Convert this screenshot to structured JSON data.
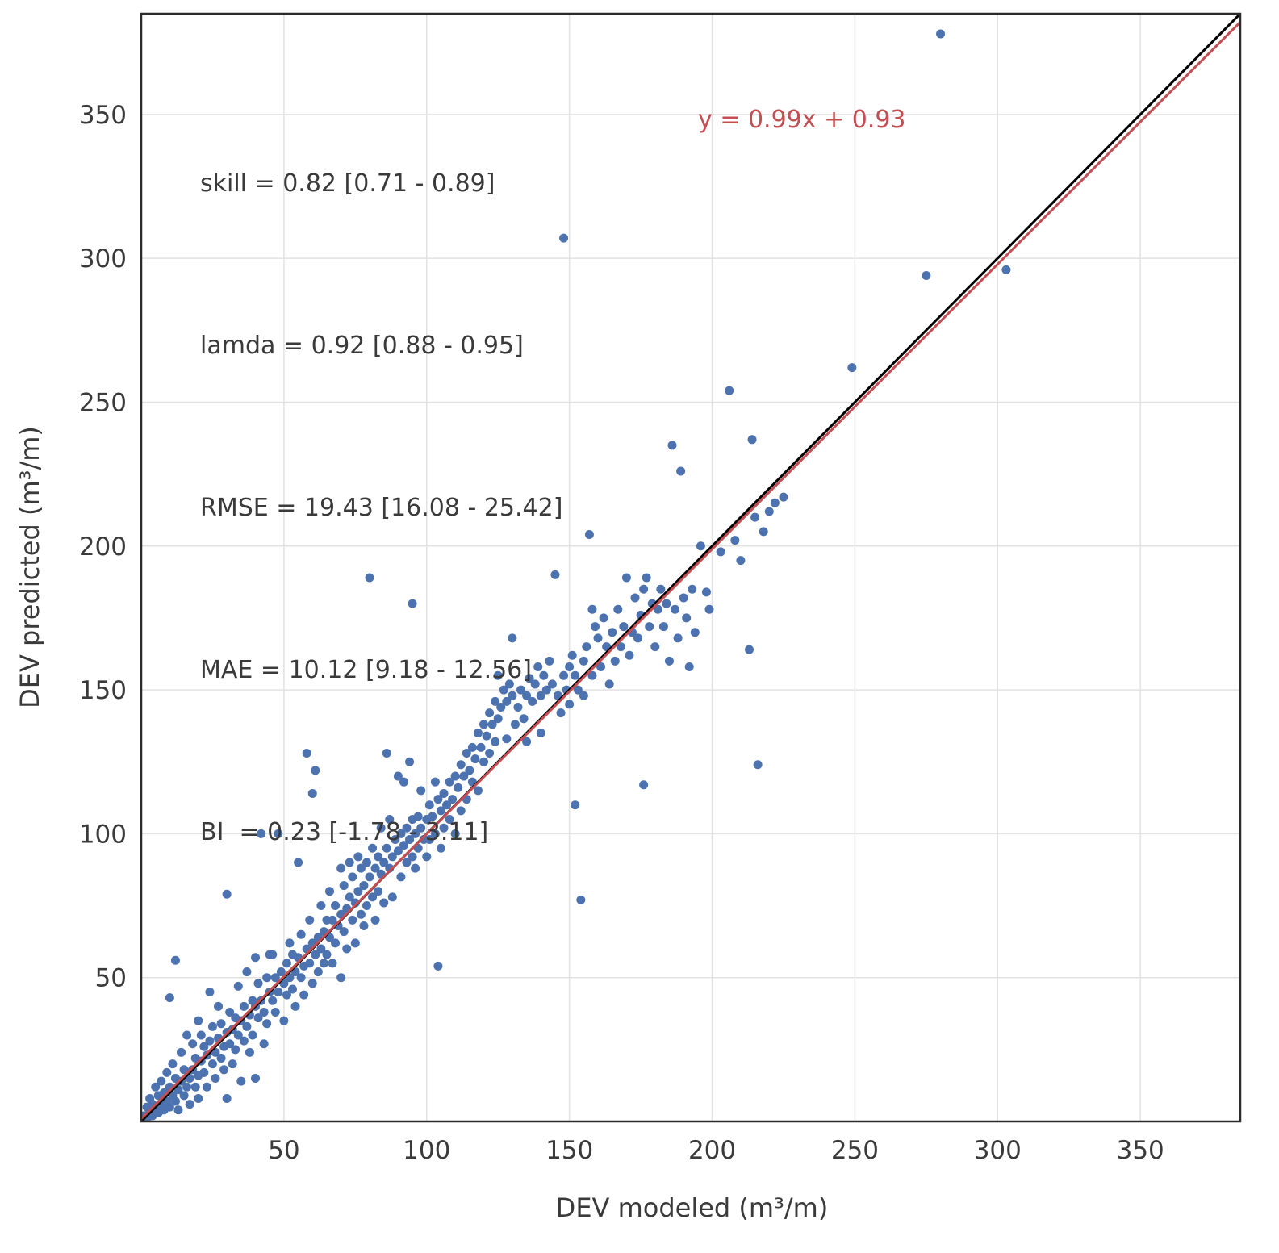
{
  "chart_data": {
    "type": "scatter",
    "title": "",
    "xlabel": "DEV modeled (m³/m)",
    "ylabel": "DEV predicted (m³/m)",
    "xlim": [
      0,
      385
    ],
    "ylim": [
      0,
      385
    ],
    "xticks": [
      50,
      100,
      150,
      200,
      250,
      300,
      350
    ],
    "yticks": [
      50,
      100,
      150,
      200,
      250,
      300,
      350
    ],
    "grid": true,
    "grid_color": "#e2e2e2",
    "border_color": "#2b2b2b",
    "point_color": "#4c72b0",
    "point_radius": 5.5,
    "identity_line": {
      "color": "#000000",
      "width": 3
    },
    "regression_line": {
      "slope": 0.99,
      "intercept": 0.93,
      "color": "#c44e52",
      "width": 3
    },
    "annotations": {
      "stats_lines": [
        "skill = 0.82 [0.71 - 0.89]",
        "lamda = 0.92 [0.88 - 0.95]",
        "RMSE = 19.43 [16.08 - 25.42]",
        "MAE = 10.12 [9.18 - 12.56]",
        "BI  = 0.23 [-1.78 - 3.11]"
      ],
      "regression_label": "y = 0.99x + 0.93",
      "regression_label_color": "#c44e52"
    },
    "points": [
      [
        1,
        2
      ],
      [
        2,
        5
      ],
      [
        2,
        1
      ],
      [
        3,
        3
      ],
      [
        3,
        8
      ],
      [
        4,
        2
      ],
      [
        4,
        6
      ],
      [
        5,
        5
      ],
      [
        5,
        12
      ],
      [
        6,
        3
      ],
      [
        6,
        9
      ],
      [
        7,
        6
      ],
      [
        7,
        14
      ],
      [
        8,
        4
      ],
      [
        8,
        10
      ],
      [
        9,
        7
      ],
      [
        9,
        17
      ],
      [
        10,
        5
      ],
      [
        10,
        12
      ],
      [
        10,
        43
      ],
      [
        11,
        9
      ],
      [
        11,
        20
      ],
      [
        12,
        7
      ],
      [
        12,
        15
      ],
      [
        12,
        56
      ],
      [
        13,
        11
      ],
      [
        13,
        4
      ],
      [
        14,
        14
      ],
      [
        14,
        24
      ],
      [
        15,
        9
      ],
      [
        15,
        18
      ],
      [
        16,
        12
      ],
      [
        16,
        30
      ],
      [
        17,
        15
      ],
      [
        17,
        6
      ],
      [
        18,
        18
      ],
      [
        18,
        27
      ],
      [
        19,
        12
      ],
      [
        19,
        22
      ],
      [
        20,
        16
      ],
      [
        20,
        35
      ],
      [
        20,
        8
      ],
      [
        21,
        21
      ],
      [
        21,
        30
      ],
      [
        22,
        17
      ],
      [
        22,
        26
      ],
      [
        23,
        23
      ],
      [
        23,
        12
      ],
      [
        24,
        28
      ],
      [
        24,
        45
      ],
      [
        25,
        20
      ],
      [
        25,
        33
      ],
      [
        26,
        24
      ],
      [
        26,
        15
      ],
      [
        27,
        29
      ],
      [
        27,
        40
      ],
      [
        28,
        22
      ],
      [
        28,
        34
      ],
      [
        29,
        26
      ],
      [
        29,
        18
      ],
      [
        30,
        31
      ],
      [
        30,
        8
      ],
      [
        30,
        79
      ],
      [
        31,
        27
      ],
      [
        31,
        38
      ],
      [
        32,
        32
      ],
      [
        32,
        20
      ],
      [
        33,
        36
      ],
      [
        33,
        25
      ],
      [
        34,
        30
      ],
      [
        34,
        47
      ],
      [
        35,
        35
      ],
      [
        35,
        14
      ],
      [
        36,
        40
      ],
      [
        36,
        28
      ],
      [
        37,
        33
      ],
      [
        37,
        52
      ],
      [
        38,
        37
      ],
      [
        38,
        24
      ],
      [
        39,
        42
      ],
      [
        39,
        30
      ],
      [
        40,
        40
      ],
      [
        40,
        15
      ],
      [
        40,
        57
      ],
      [
        41,
        36
      ],
      [
        41,
        48
      ],
      [
        42,
        42
      ],
      [
        42,
        100
      ],
      [
        43,
        38
      ],
      [
        43,
        27
      ],
      [
        44,
        50
      ],
      [
        44,
        34
      ],
      [
        45,
        45
      ],
      [
        45,
        58
      ],
      [
        46,
        42
      ],
      [
        46,
        58
      ],
      [
        47,
        38
      ],
      [
        47,
        50
      ],
      [
        48,
        45
      ],
      [
        48,
        100
      ],
      [
        49,
        52
      ],
      [
        50,
        48
      ],
      [
        50,
        35
      ],
      [
        51,
        55
      ],
      [
        51,
        44
      ],
      [
        52,
        50
      ],
      [
        52,
        62
      ],
      [
        53,
        46
      ],
      [
        53,
        58
      ],
      [
        54,
        52
      ],
      [
        54,
        40
      ],
      [
        55,
        57
      ],
      [
        55,
        90
      ],
      [
        56,
        50
      ],
      [
        56,
        65
      ],
      [
        57,
        54
      ],
      [
        57,
        44
      ],
      [
        58,
        60
      ],
      [
        58,
        128
      ],
      [
        59,
        55
      ],
      [
        59,
        70
      ],
      [
        60,
        62
      ],
      [
        60,
        48
      ],
      [
        60,
        114
      ],
      [
        61,
        58
      ],
      [
        61,
        122
      ],
      [
        62,
        64
      ],
      [
        62,
        52
      ],
      [
        63,
        60
      ],
      [
        63,
        75
      ],
      [
        64,
        66
      ],
      [
        64,
        55
      ],
      [
        65,
        70
      ],
      [
        65,
        58
      ],
      [
        66,
        64
      ],
      [
        66,
        80
      ],
      [
        67,
        70
      ],
      [
        67,
        55
      ],
      [
        68,
        75
      ],
      [
        68,
        62
      ],
      [
        69,
        68
      ],
      [
        70,
        72
      ],
      [
        70,
        50
      ],
      [
        70,
        88
      ],
      [
        71,
        66
      ],
      [
        71,
        82
      ],
      [
        72,
        74
      ],
      [
        72,
        60
      ],
      [
        73,
        78
      ],
      [
        73,
        90
      ],
      [
        74,
        70
      ],
      [
        74,
        85
      ],
      [
        75,
        76
      ],
      [
        75,
        62
      ],
      [
        76,
        80
      ],
      [
        76,
        92
      ],
      [
        77,
        72
      ],
      [
        77,
        88
      ],
      [
        78,
        82
      ],
      [
        78,
        68
      ],
      [
        79,
        90
      ],
      [
        79,
        75
      ],
      [
        80,
        85
      ],
      [
        80,
        189
      ],
      [
        81,
        78
      ],
      [
        81,
        95
      ],
      [
        82,
        88
      ],
      [
        82,
        70
      ],
      [
        83,
        92
      ],
      [
        83,
        80
      ],
      [
        84,
        86
      ],
      [
        84,
        102
      ],
      [
        85,
        90
      ],
      [
        85,
        76
      ],
      [
        86,
        95
      ],
      [
        86,
        128
      ],
      [
        87,
        88
      ],
      [
        87,
        105
      ],
      [
        88,
        92
      ],
      [
        88,
        78
      ],
      [
        89,
        98
      ],
      [
        90,
        94
      ],
      [
        90,
        120
      ],
      [
        91,
        100
      ],
      [
        91,
        85
      ],
      [
        92,
        96
      ],
      [
        92,
        118
      ],
      [
        93,
        102
      ],
      [
        93,
        90
      ],
      [
        94,
        98
      ],
      [
        94,
        125
      ],
      [
        95,
        105
      ],
      [
        95,
        180
      ],
      [
        95,
        92
      ],
      [
        96,
        100
      ],
      [
        96,
        88
      ],
      [
        97,
        106
      ],
      [
        97,
        95
      ],
      [
        98,
        102
      ],
      [
        98,
        115
      ],
      [
        99,
        98
      ],
      [
        100,
        105
      ],
      [
        100,
        92
      ],
      [
        101,
        110
      ],
      [
        101,
        98
      ],
      [
        102,
        106
      ],
      [
        103,
        100
      ],
      [
        103,
        118
      ],
      [
        104,
        54
      ],
      [
        104,
        112
      ],
      [
        105,
        108
      ],
      [
        105,
        95
      ],
      [
        106,
        114
      ],
      [
        106,
        102
      ],
      [
        107,
        110
      ],
      [
        108,
        118
      ],
      [
        108,
        105
      ],
      [
        109,
        112
      ],
      [
        110,
        120
      ],
      [
        110,
        100
      ],
      [
        111,
        116
      ],
      [
        112,
        124
      ],
      [
        112,
        108
      ],
      [
        113,
        120
      ],
      [
        114,
        128
      ],
      [
        114,
        112
      ],
      [
        115,
        122
      ],
      [
        116,
        130
      ],
      [
        116,
        118
      ],
      [
        117,
        126
      ],
      [
        118,
        135
      ],
      [
        118,
        115
      ],
      [
        119,
        130
      ],
      [
        120,
        138
      ],
      [
        120,
        125
      ],
      [
        121,
        134
      ],
      [
        122,
        142
      ],
      [
        122,
        128
      ],
      [
        123,
        138
      ],
      [
        124,
        146
      ],
      [
        124,
        132
      ],
      [
        125,
        140
      ],
      [
        125,
        155
      ],
      [
        126,
        144
      ],
      [
        127,
        150
      ],
      [
        128,
        146
      ],
      [
        128,
        133
      ],
      [
        129,
        152
      ],
      [
        130,
        148
      ],
      [
        130,
        168
      ],
      [
        131,
        138
      ],
      [
        132,
        144
      ],
      [
        133,
        150
      ],
      [
        134,
        140
      ],
      [
        135,
        148
      ],
      [
        135,
        132
      ],
      [
        136,
        154
      ],
      [
        137,
        146
      ],
      [
        138,
        152
      ],
      [
        139,
        158
      ],
      [
        140,
        148
      ],
      [
        140,
        135
      ],
      [
        141,
        155
      ],
      [
        142,
        150
      ],
      [
        143,
        160
      ],
      [
        144,
        152
      ],
      [
        145,
        190
      ],
      [
        146,
        148
      ],
      [
        147,
        142
      ],
      [
        148,
        307
      ],
      [
        148,
        155
      ],
      [
        149,
        150
      ],
      [
        150,
        158
      ],
      [
        150,
        145
      ],
      [
        151,
        162
      ],
      [
        152,
        110
      ],
      [
        152,
        155
      ],
      [
        153,
        150
      ],
      [
        154,
        77
      ],
      [
        155,
        160
      ],
      [
        155,
        148
      ],
      [
        156,
        165
      ],
      [
        157,
        204
      ],
      [
        158,
        178
      ],
      [
        158,
        155
      ],
      [
        159,
        172
      ],
      [
        160,
        168
      ],
      [
        161,
        158
      ],
      [
        162,
        175
      ],
      [
        163,
        165
      ],
      [
        164,
        152
      ],
      [
        165,
        170
      ],
      [
        166,
        160
      ],
      [
        167,
        178
      ],
      [
        168,
        165
      ],
      [
        169,
        172
      ],
      [
        170,
        189
      ],
      [
        171,
        162
      ],
      [
        172,
        170
      ],
      [
        173,
        182
      ],
      [
        174,
        168
      ],
      [
        175,
        176
      ],
      [
        176,
        185
      ],
      [
        176,
        117
      ],
      [
        177,
        189
      ],
      [
        178,
        172
      ],
      [
        179,
        180
      ],
      [
        180,
        165
      ],
      [
        181,
        178
      ],
      [
        182,
        185
      ],
      [
        183,
        172
      ],
      [
        184,
        180
      ],
      [
        185,
        160
      ],
      [
        186,
        235
      ],
      [
        187,
        178
      ],
      [
        188,
        168
      ],
      [
        189,
        226
      ],
      [
        190,
        182
      ],
      [
        191,
        175
      ],
      [
        192,
        158
      ],
      [
        193,
        185
      ],
      [
        194,
        170
      ],
      [
        196,
        200
      ],
      [
        198,
        184
      ],
      [
        199,
        178
      ],
      [
        203,
        198
      ],
      [
        206,
        254
      ],
      [
        208,
        202
      ],
      [
        210,
        195
      ],
      [
        213,
        164
      ],
      [
        214,
        237
      ],
      [
        215,
        210
      ],
      [
        216,
        124
      ],
      [
        218,
        205
      ],
      [
        220,
        212
      ],
      [
        222,
        215
      ],
      [
        225,
        217
      ],
      [
        249,
        262
      ],
      [
        275,
        294
      ],
      [
        280,
        378
      ],
      [
        303,
        296
      ]
    ]
  }
}
